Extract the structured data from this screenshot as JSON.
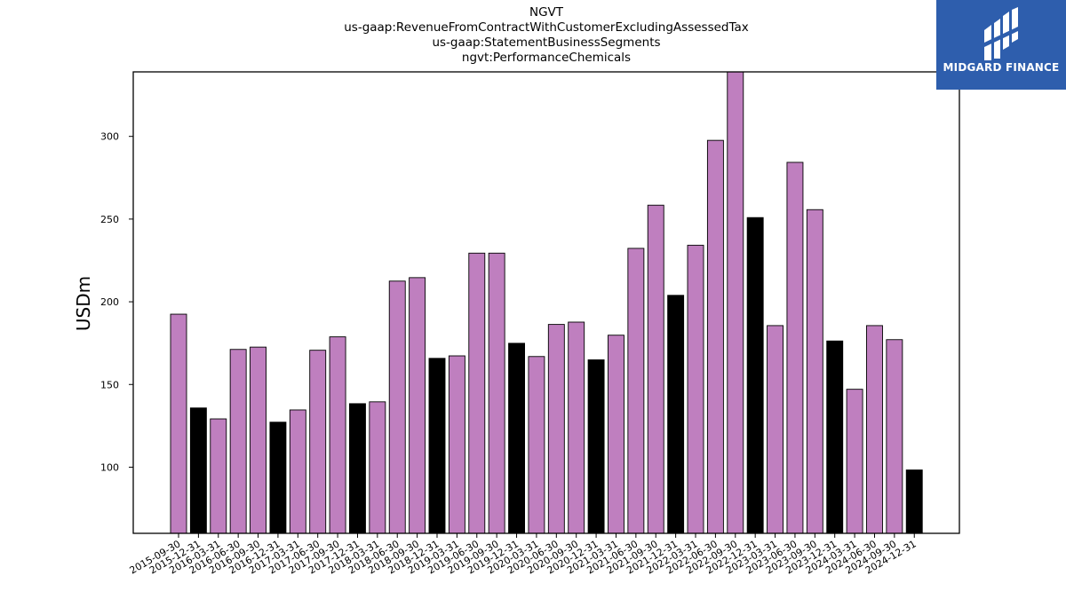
{
  "chart_data": {
    "type": "bar",
    "title_lines": [
      "NGVT",
      "us-gaap:RevenueFromContractWithCustomerExcludingAssessedTax",
      "us-gaap:StatementBusinessSegments",
      "ngvt:PerformanceChemicals"
    ],
    "xlabel": "",
    "ylabel": "USDm",
    "ylim": [
      60,
      339
    ],
    "yticks": [
      100,
      150,
      200,
      250,
      300
    ],
    "categories": [
      "2015-09-30",
      "2015-12-31",
      "2016-03-31",
      "2016-06-30",
      "2016-09-30",
      "2016-12-31",
      "2017-03-31",
      "2017-06-30",
      "2017-09-30",
      "2017-12-31",
      "2018-03-31",
      "2018-06-30",
      "2018-09-30",
      "2018-12-31",
      "2019-03-31",
      "2019-06-30",
      "2019-09-30",
      "2019-12-31",
      "2020-03-31",
      "2020-06-30",
      "2020-09-30",
      "2020-12-31",
      "2021-03-31",
      "2021-06-30",
      "2021-09-30",
      "2021-12-31",
      "2022-03-31",
      "2022-06-30",
      "2022-09-30",
      "2022-12-31",
      "2023-03-31",
      "2023-06-30",
      "2023-09-30",
      "2023-12-31",
      "2024-03-31",
      "2024-06-30",
      "2024-09-30",
      "2024-12-31"
    ],
    "values": [
      192.5,
      135.8,
      129.2,
      171.2,
      172.6,
      127.2,
      134.6,
      170.7,
      178.8,
      138.4,
      139.5,
      212.5,
      214.6,
      165.8,
      167.3,
      229.4,
      229.4,
      174.9,
      166.9,
      186.3,
      187.7,
      164.9,
      179.8,
      232.3,
      258.4,
      203.9,
      234.2,
      297.6,
      339.0,
      250.9,
      185.6,
      284.3,
      255.7,
      176.3,
      147.1,
      185.6,
      177.1,
      98.3
    ],
    "colors": {
      "quarter": "#bf7fbf",
      "year_end": "#000000",
      "edge": "#000000"
    },
    "grid": false
  },
  "logo": {
    "name": "MIDGARD FINANCE",
    "bg": "#2e5ead",
    "fg": "#ffffff"
  }
}
